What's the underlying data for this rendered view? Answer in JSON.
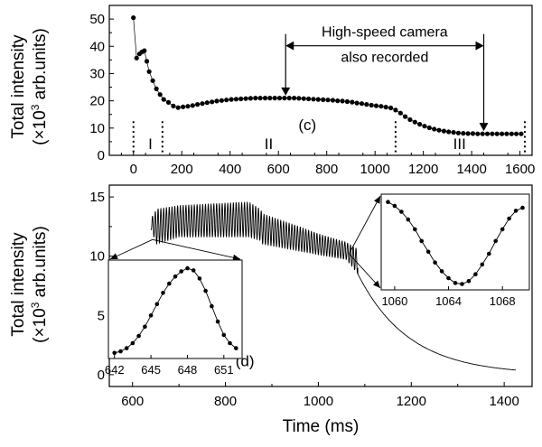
{
  "chart_data": [
    {
      "id": "c",
      "type": "scatter",
      "panel_label": "(c)",
      "ylabel_line1": "Total intensity",
      "ylabel_line2_pre": "(×10",
      "ylabel_line2_sup": "3",
      "ylabel_line2_post": " arb.units)",
      "xlim": [
        -100,
        1650
      ],
      "ylim": [
        0,
        55
      ],
      "xticks": [
        "0",
        "200",
        "400",
        "600",
        "800",
        "1000",
        "1200",
        "1400",
        "1600"
      ],
      "yticks": [
        "0",
        "10",
        "20",
        "30",
        "40",
        "50"
      ],
      "annotation_line1": "High-speed camera",
      "annotation_line2": "also recorded",
      "annotation_span": [
        630,
        1450
      ],
      "region_bounds": [
        0,
        120,
        1085,
        1620
      ],
      "regions": [
        {
          "label": "I",
          "x": 70
        },
        {
          "label": "II",
          "x": 560
        },
        {
          "label": "III",
          "x": 1350
        }
      ],
      "points": [
        [
          0,
          50.5
        ],
        [
          13,
          35.7
        ],
        [
          25,
          37.2
        ],
        [
          35,
          37.9
        ],
        [
          45,
          38.4
        ],
        [
          55,
          34.5
        ],
        [
          65,
          30.7
        ],
        [
          80,
          27.4
        ],
        [
          95,
          24.4
        ],
        [
          110,
          22.3
        ],
        [
          125,
          20.5
        ],
        [
          145,
          19.4
        ],
        [
          165,
          18.1
        ],
        [
          185,
          17.5
        ],
        [
          205,
          17.8
        ],
        [
          225,
          18.0
        ],
        [
          245,
          18.3
        ],
        [
          265,
          18.7
        ],
        [
          285,
          19.0
        ],
        [
          305,
          19.3
        ],
        [
          325,
          19.6
        ],
        [
          345,
          19.9
        ],
        [
          365,
          20.1
        ],
        [
          385,
          20.3
        ],
        [
          405,
          20.5
        ],
        [
          425,
          20.6
        ],
        [
          445,
          20.7
        ],
        [
          465,
          20.8
        ],
        [
          485,
          20.9
        ],
        [
          505,
          21.0
        ],
        [
          525,
          21.0
        ],
        [
          545,
          21.0
        ],
        [
          565,
          21.0
        ],
        [
          585,
          21.0
        ],
        [
          605,
          21.0
        ],
        [
          625,
          21.0
        ],
        [
          645,
          21.0
        ],
        [
          665,
          21.0
        ],
        [
          685,
          20.9
        ],
        [
          705,
          20.8
        ],
        [
          725,
          20.7
        ],
        [
          745,
          20.6
        ],
        [
          765,
          20.5
        ],
        [
          785,
          20.4
        ],
        [
          805,
          20.3
        ],
        [
          825,
          20.2
        ],
        [
          845,
          20.0
        ],
        [
          865,
          19.9
        ],
        [
          885,
          19.7
        ],
        [
          905,
          19.5
        ],
        [
          925,
          19.2
        ],
        [
          945,
          19.0
        ],
        [
          965,
          18.7
        ],
        [
          985,
          18.4
        ],
        [
          1005,
          18.2
        ],
        [
          1025,
          18.0
        ],
        [
          1045,
          17.7
        ],
        [
          1065,
          17.4
        ],
        [
          1085,
          16.6
        ],
        [
          1105,
          15.5
        ],
        [
          1125,
          14.2
        ],
        [
          1145,
          13.1
        ],
        [
          1165,
          12.2
        ],
        [
          1185,
          11.4
        ],
        [
          1205,
          10.7
        ],
        [
          1225,
          10.1
        ],
        [
          1245,
          9.6
        ],
        [
          1265,
          9.2
        ],
        [
          1285,
          8.9
        ],
        [
          1305,
          8.6
        ],
        [
          1325,
          8.4
        ],
        [
          1345,
          8.2
        ],
        [
          1365,
          8.1
        ],
        [
          1385,
          8.0
        ],
        [
          1405,
          8.0
        ],
        [
          1425,
          7.9
        ],
        [
          1445,
          7.9
        ],
        [
          1465,
          7.9
        ],
        [
          1485,
          7.9
        ],
        [
          1505,
          7.9
        ],
        [
          1525,
          7.9
        ],
        [
          1545,
          7.9
        ],
        [
          1565,
          7.9
        ],
        [
          1585,
          7.9
        ],
        [
          1605,
          7.9
        ]
      ]
    },
    {
      "id": "d",
      "type": "line",
      "panel_label": "(d)",
      "xlabel": "Time (ms)",
      "ylabel_line1": "Total intensity",
      "ylabel_line2_pre": "(×10",
      "ylabel_line2_sup": "3",
      "ylabel_line2_post": " arb.units)",
      "xlim": [
        550,
        1460
      ],
      "ylim": [
        -1,
        16
      ],
      "xticks": [
        "600",
        "800",
        "1000",
        "1200",
        "1400"
      ],
      "yticks": [
        "0",
        "5",
        "10",
        "15"
      ],
      "oscillation": {
        "t_start": 640,
        "t_osc_end": 1085,
        "t_end": 1425,
        "period_ms": 6,
        "phases": [
          {
            "t": 640,
            "min": 12.2,
            "max": 13.2
          },
          {
            "t": 652,
            "min": 11.0,
            "max": 14.0
          },
          {
            "t": 700,
            "min": 11.6,
            "max": 14.3
          },
          {
            "t": 850,
            "min": 11.6,
            "max": 14.6
          },
          {
            "t": 875,
            "min": 11.3,
            "max": 14.0
          },
          {
            "t": 880,
            "min": 11.0,
            "max": 13.6
          },
          {
            "t": 960,
            "min": 10.4,
            "max": 12.5
          },
          {
            "t": 1000,
            "min": 10.1,
            "max": 11.9
          },
          {
            "t": 1060,
            "min": 9.7,
            "max": 11.2
          },
          {
            "t": 1085,
            "min": 8.5,
            "max": 10.6
          }
        ],
        "decay_tau_ms": 110,
        "decay_start_value": 8.5
      },
      "inset_left": {
        "xlim": [
          641.5,
          652.5
        ],
        "ylim": [
          0,
          9.6
        ],
        "xticks": [
          "642",
          "645",
          "648",
          "651"
        ],
        "points": [
          [
            642,
            0.55
          ],
          [
            642.5,
            0.7
          ],
          [
            643,
            1.0
          ],
          [
            643.5,
            1.5
          ],
          [
            644,
            2.2
          ],
          [
            644.5,
            3.1
          ],
          [
            645,
            4.2
          ],
          [
            645.5,
            5.3
          ],
          [
            646,
            6.4
          ],
          [
            646.5,
            7.3
          ],
          [
            647,
            8.0
          ],
          [
            647.5,
            8.5
          ],
          [
            648,
            8.8
          ],
          [
            648.5,
            8.6
          ],
          [
            649,
            7.8
          ],
          [
            649.5,
            6.6
          ],
          [
            650,
            5.1
          ],
          [
            650.5,
            3.6
          ],
          [
            651,
            2.3
          ],
          [
            651.5,
            1.5
          ],
          [
            652,
            1.0
          ]
        ]
      },
      "inset_right": {
        "xlim": [
          1059,
          1070
        ],
        "ylim": [
          7.7,
          17.5
        ],
        "xticks": [
          "1060",
          "1064",
          "1068"
        ],
        "points": [
          [
            1059.5,
            16.7
          ],
          [
            1060,
            16.3
          ],
          [
            1060.5,
            15.7
          ],
          [
            1061,
            14.9
          ],
          [
            1061.5,
            13.9
          ],
          [
            1062,
            12.7
          ],
          [
            1062.5,
            11.6
          ],
          [
            1063,
            10.5
          ],
          [
            1063.5,
            9.6
          ],
          [
            1064,
            8.9
          ],
          [
            1064.5,
            8.4
          ],
          [
            1065,
            8.3
          ],
          [
            1065.5,
            8.6
          ],
          [
            1066,
            9.3
          ],
          [
            1066.5,
            10.3
          ],
          [
            1067,
            11.4
          ],
          [
            1067.5,
            12.7
          ],
          [
            1068,
            13.9
          ],
          [
            1068.5,
            15.0
          ],
          [
            1069,
            15.8
          ],
          [
            1069.5,
            16.1
          ]
        ]
      }
    }
  ]
}
